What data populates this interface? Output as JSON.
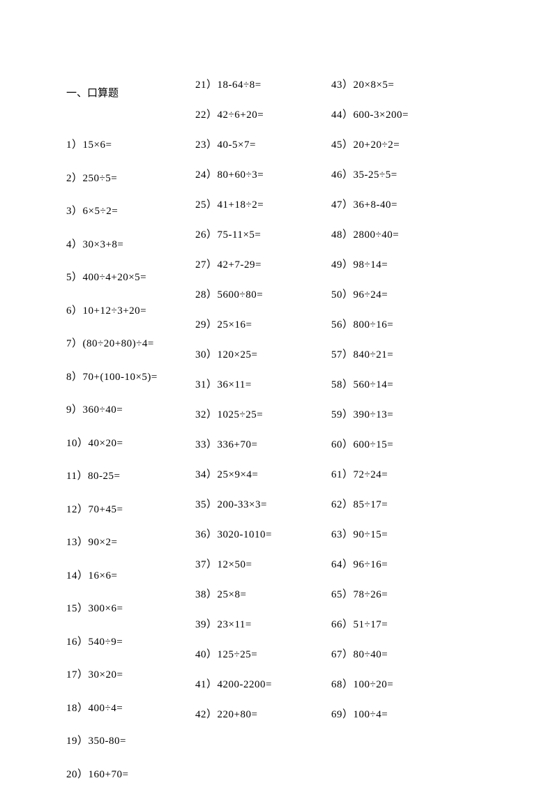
{
  "title": "一、口算题",
  "column1": [
    {
      "num": "1",
      "expr": "15×6="
    },
    {
      "num": "2",
      "expr": "250÷5="
    },
    {
      "num": "3",
      "expr": "6×5÷2="
    },
    {
      "num": "4",
      "expr": "30×3+8="
    },
    {
      "num": "5",
      "expr": "400÷4+20×5="
    },
    {
      "num": "6",
      "expr": "10+12÷3+20="
    },
    {
      "num": "7",
      "expr": "(80÷20+80)÷4="
    },
    {
      "num": "8",
      "expr": "70+(100-10×5)="
    },
    {
      "num": "9",
      "expr": "360÷40="
    },
    {
      "num": "10",
      "expr": "40×20="
    },
    {
      "num": "11",
      "expr": "80-25="
    },
    {
      "num": "12",
      "expr": "70+45="
    },
    {
      "num": "13",
      "expr": "90×2="
    },
    {
      "num": "14",
      "expr": "16×6="
    },
    {
      "num": "15",
      "expr": "300×6="
    },
    {
      "num": "16",
      "expr": "540÷9="
    },
    {
      "num": "17",
      "expr": "30×20="
    },
    {
      "num": "18",
      "expr": "400÷4="
    },
    {
      "num": "19",
      "expr": "350-80="
    },
    {
      "num": "20",
      "expr": "160+70="
    }
  ],
  "column2": [
    {
      "num": "21",
      "expr": "18-64÷8="
    },
    {
      "num": "22",
      "expr": "42÷6+20="
    },
    {
      "num": "23",
      "expr": "40-5×7="
    },
    {
      "num": "24",
      "expr": "80+60÷3="
    },
    {
      "num": "25",
      "expr": "41+18÷2="
    },
    {
      "num": "26",
      "expr": "75-11×5="
    },
    {
      "num": "27",
      "expr": "42+7-29="
    },
    {
      "num": "28",
      "expr": "5600÷80="
    },
    {
      "num": "29",
      "expr": "25×16="
    },
    {
      "num": "30",
      "expr": "120×25="
    },
    {
      "num": "31",
      "expr": "36×11="
    },
    {
      "num": "32",
      "expr": "1025÷25="
    },
    {
      "num": "33",
      "expr": "336+70="
    },
    {
      "num": "34",
      "expr": "25×9×4="
    },
    {
      "num": "35",
      "expr": "200-33×3="
    },
    {
      "num": "36",
      "expr": "3020-1010="
    },
    {
      "num": "37",
      "expr": "12×50="
    },
    {
      "num": "38",
      "expr": "25×8="
    },
    {
      "num": "39",
      "expr": "23×11="
    },
    {
      "num": "40",
      "expr": "125÷25="
    },
    {
      "num": "41",
      "expr": "4200-2200="
    },
    {
      "num": "42",
      "expr": "220+80="
    }
  ],
  "column3": [
    {
      "num": "43",
      "expr": "20×8×5="
    },
    {
      "num": "44",
      "expr": "600-3×200="
    },
    {
      "num": "45",
      "expr": "20+20÷2="
    },
    {
      "num": "46",
      "expr": "35-25÷5="
    },
    {
      "num": "47",
      "expr": "36+8-40="
    },
    {
      "num": "48",
      "expr": "2800÷40="
    },
    {
      "num": "49",
      "expr": "98÷14="
    },
    {
      "num": "50",
      "expr": "96÷24="
    },
    {
      "num": "56",
      "expr": "800÷16="
    },
    {
      "num": "57",
      "expr": "840÷21="
    },
    {
      "num": "58",
      "expr": "560÷14="
    },
    {
      "num": "59",
      "expr": "390÷13="
    },
    {
      "num": "60",
      "expr": "600÷15="
    },
    {
      "num": "61",
      "expr": "72÷24="
    },
    {
      "num": "62",
      "expr": "85÷17="
    },
    {
      "num": "63",
      "expr": "90÷15="
    },
    {
      "num": "64",
      "expr": "96÷16="
    },
    {
      "num": "65",
      "expr": "78÷26="
    },
    {
      "num": "66",
      "expr": "51÷17="
    },
    {
      "num": "67",
      "expr": "80÷40="
    },
    {
      "num": "68",
      "expr": "100÷20="
    },
    {
      "num": "69",
      "expr": "100÷4="
    }
  ]
}
